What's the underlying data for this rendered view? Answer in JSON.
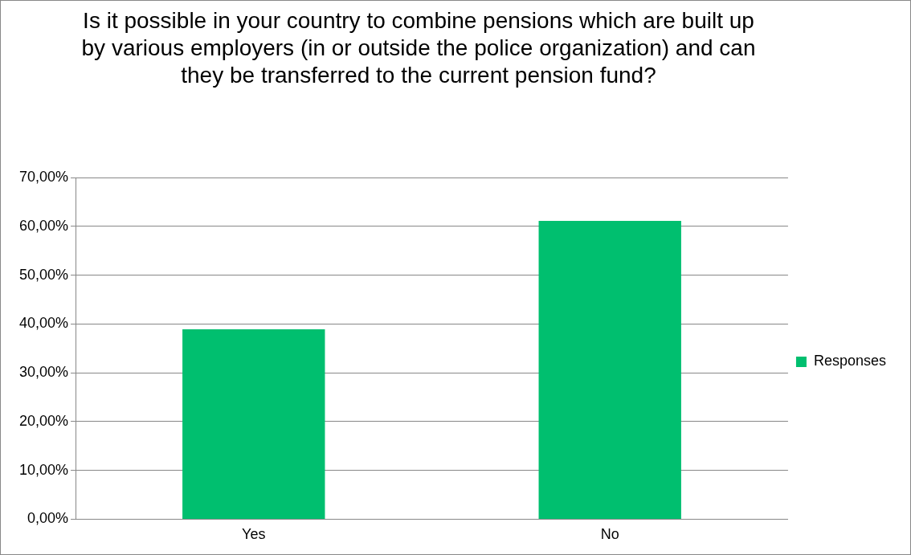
{
  "chart_data": {
    "type": "bar",
    "title": "Is it possible in your country to combine pensions which are built up by various employers (in or outside the police organization) and can they be transferred to the current pension fund?",
    "categories": [
      "Yes",
      "No"
    ],
    "series": [
      {
        "name": "Responses",
        "color": "#00bf6f",
        "values": [
          38.9,
          61.1
        ]
      }
    ],
    "ylim": [
      0,
      70
    ],
    "yticks": [
      {
        "value": 0,
        "label": "0,00%"
      },
      {
        "value": 10,
        "label": "10,00%"
      },
      {
        "value": 20,
        "label": "20,00%"
      },
      {
        "value": 30,
        "label": "30,00%"
      },
      {
        "value": 40,
        "label": "40,00%"
      },
      {
        "value": 50,
        "label": "50,00%"
      },
      {
        "value": 60,
        "label": "60,00%"
      },
      {
        "value": 70,
        "label": "70,00%"
      }
    ],
    "grid": "y",
    "legend": "right"
  }
}
